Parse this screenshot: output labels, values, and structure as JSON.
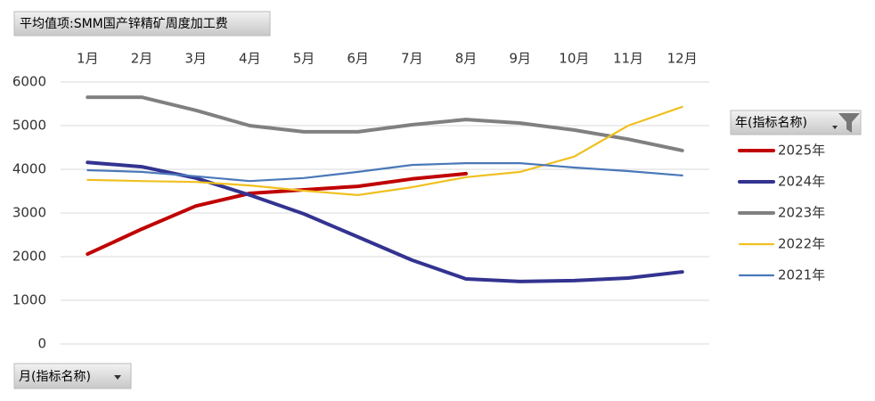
{
  "chart_data": {
    "type": "line",
    "title": "平均值项:SMM国产锌精矿周度加工费",
    "legend_title": "年(指标名称)",
    "x_field": "月(指标名称)",
    "categories": [
      "1月",
      "2月",
      "3月",
      "4月",
      "5月",
      "6月",
      "7月",
      "8月",
      "9月",
      "10月",
      "11月",
      "12月"
    ],
    "ylim": [
      0,
      6000
    ],
    "yticks": [
      0,
      1000,
      2000,
      3000,
      4000,
      5000,
      6000
    ],
    "grid": true,
    "legend": "right",
    "series": [
      {
        "name": "2025年",
        "color": "#c00000",
        "values": [
          2060,
          2630,
          3160,
          3450,
          3530,
          3610,
          3780,
          3900,
          null,
          null,
          null,
          null
        ]
      },
      {
        "name": "2024年",
        "color": "#333391",
        "values": [
          4160,
          4060,
          3800,
          3410,
          2980,
          2450,
          1920,
          1490,
          1430,
          1450,
          1510,
          1650
        ]
      },
      {
        "name": "2023年",
        "color": "#808080",
        "values": [
          5650,
          5650,
          5350,
          5000,
          4860,
          4860,
          5020,
          5140,
          5060,
          4900,
          4690,
          4430
        ]
      },
      {
        "name": "2022年",
        "color": "#f0c020",
        "values": [
          3760,
          3730,
          3710,
          3630,
          3510,
          3410,
          3590,
          3820,
          3940,
          4290,
          5000,
          5430
        ]
      },
      {
        "name": "2021年",
        "color": "#4a78b8",
        "values": [
          3980,
          3940,
          3840,
          3730,
          3800,
          3940,
          4100,
          4140,
          4140,
          4040,
          3960,
          3860
        ]
      }
    ]
  }
}
